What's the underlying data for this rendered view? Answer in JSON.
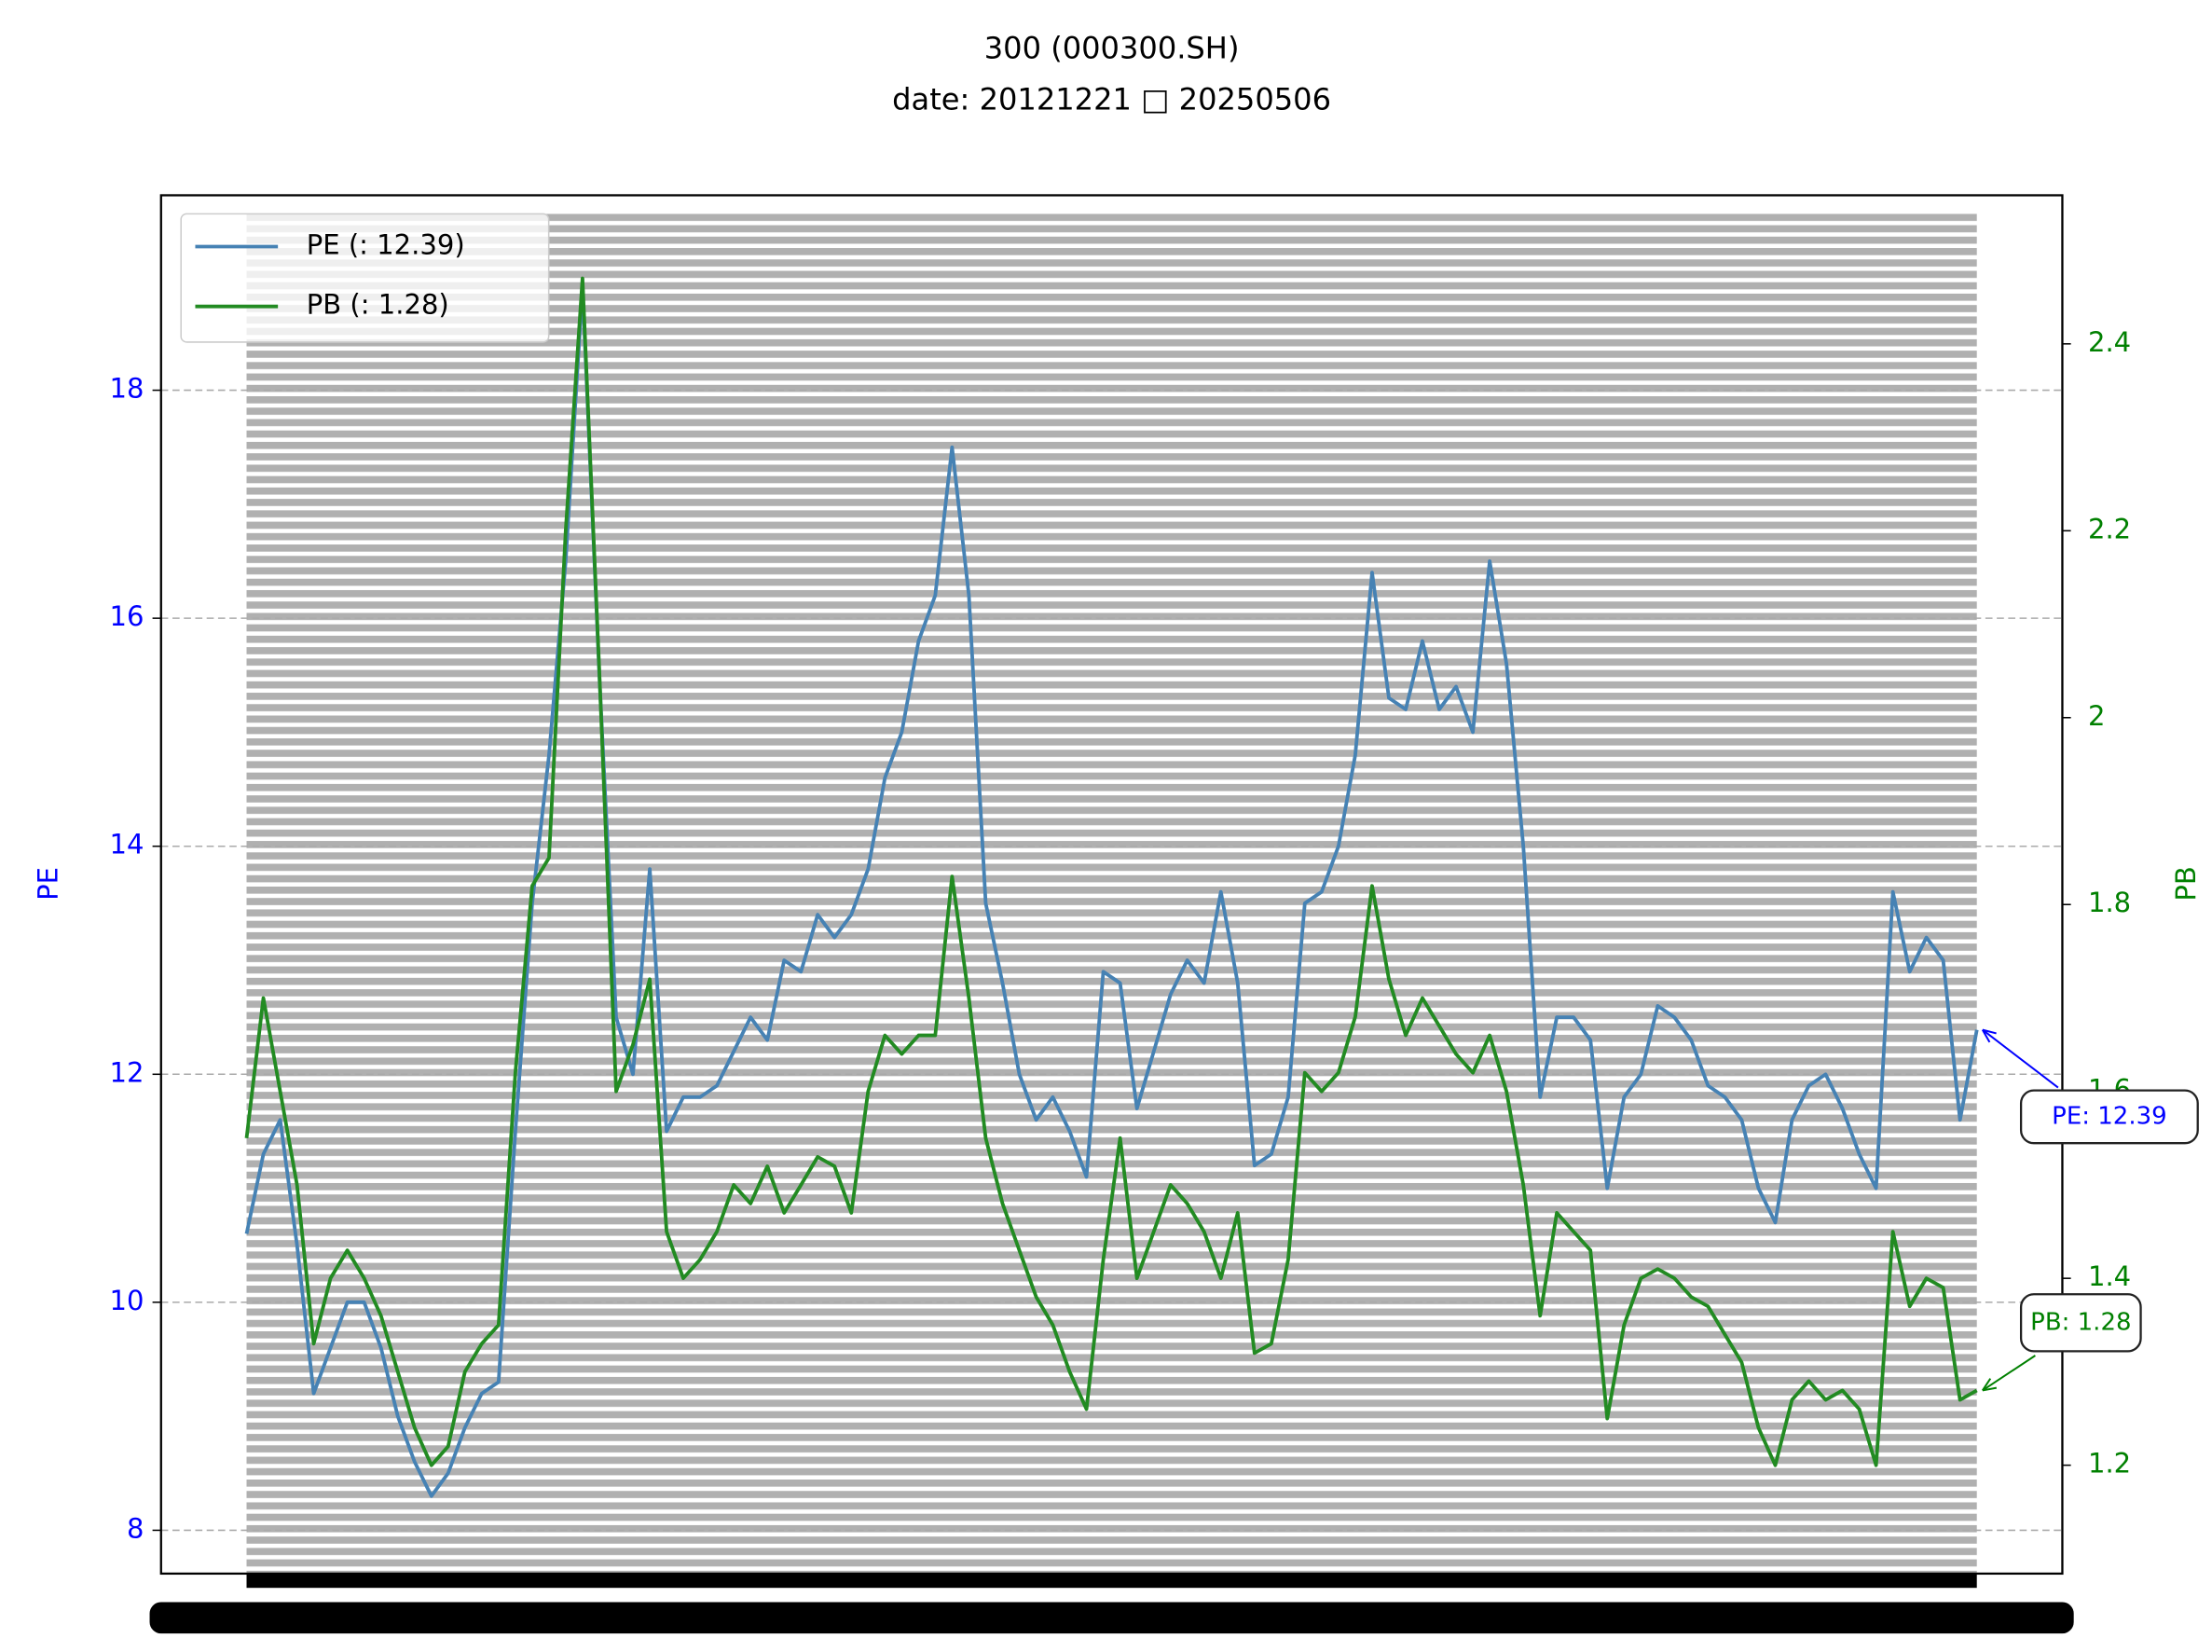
{
  "chart_data": {
    "type": "line",
    "title": "300 (000300.SH)",
    "subtitle": "date: 20121221 □ 20250506",
    "ylabel": "PE",
    "y2label": "PB",
    "ylim": [
      7.62,
      19.71
    ],
    "yticks": [
      8,
      10,
      12,
      14,
      16,
      18
    ],
    "y2lim": [
      1.084,
      2.559
    ],
    "y2ticks": [
      1.2,
      1.4,
      1.6,
      1.8,
      2.0,
      2.2,
      2.4
    ],
    "grid": true,
    "legend": "upper left",
    "series": [
      {
        "name": "PE (: 12.39)",
        "color": "#4682b4",
        "axis": "y",
        "values": [
          10.6,
          11.3,
          11.6,
          10.5,
          9.2,
          9.6,
          10.0,
          10.0,
          9.6,
          9.0,
          8.6,
          8.3,
          8.5,
          8.9,
          9.2,
          9.3,
          11.5,
          13.5,
          14.8,
          16.5,
          18.9,
          15.5,
          12.5,
          12.0,
          13.8,
          11.5,
          11.8,
          11.8,
          11.9,
          12.2,
          12.5,
          12.3,
          13.0,
          12.9,
          13.4,
          13.2,
          13.4,
          13.8,
          14.6,
          15.0,
          15.8,
          16.2,
          17.5,
          16.2,
          13.5,
          12.8,
          12.0,
          11.6,
          11.8,
          11.5,
          11.1,
          12.9,
          12.8,
          11.7,
          12.2,
          12.7,
          13.0,
          12.8,
          13.6,
          12.8,
          11.2,
          11.3,
          11.8,
          13.5,
          13.6,
          14.0,
          14.8,
          16.4,
          15.3,
          15.2,
          15.8,
          15.2,
          15.4,
          15.0,
          16.5,
          15.6,
          14.0,
          11.8,
          12.5,
          12.5,
          12.3,
          11.0,
          11.8,
          12.0,
          12.6,
          12.5,
          12.3,
          11.9,
          11.8,
          11.6,
          11.0,
          10.7,
          11.6,
          11.9,
          12.0,
          11.7,
          11.3,
          11.0,
          13.6,
          12.9,
          13.2,
          13.0,
          11.6,
          12.39
        ]
      },
      {
        "name": "PB (: 1.28)",
        "color": "#228b22",
        "axis": "y2",
        "values": [
          1.55,
          1.7,
          1.6,
          1.5,
          1.33,
          1.4,
          1.43,
          1.4,
          1.36,
          1.3,
          1.24,
          1.2,
          1.22,
          1.3,
          1.33,
          1.35,
          1.62,
          1.82,
          1.85,
          2.2,
          2.47,
          2.05,
          1.6,
          1.65,
          1.72,
          1.45,
          1.4,
          1.42,
          1.45,
          1.5,
          1.48,
          1.52,
          1.47,
          1.5,
          1.53,
          1.52,
          1.47,
          1.6,
          1.66,
          1.64,
          1.66,
          1.66,
          1.83,
          1.7,
          1.55,
          1.48,
          1.43,
          1.38,
          1.35,
          1.3,
          1.26,
          1.42,
          1.55,
          1.4,
          1.45,
          1.5,
          1.48,
          1.45,
          1.4,
          1.47,
          1.32,
          1.33,
          1.42,
          1.62,
          1.6,
          1.62,
          1.68,
          1.82,
          1.72,
          1.66,
          1.7,
          1.67,
          1.64,
          1.62,
          1.66,
          1.6,
          1.5,
          1.36,
          1.47,
          1.45,
          1.43,
          1.25,
          1.35,
          1.4,
          1.41,
          1.4,
          1.38,
          1.37,
          1.34,
          1.31,
          1.24,
          1.2,
          1.27,
          1.29,
          1.27,
          1.28,
          1.26,
          1.2,
          1.45,
          1.37,
          1.4,
          1.39,
          1.27,
          1.28
        ]
      }
    ],
    "annotations": [
      {
        "text": "PE: 12.39",
        "color": "#0000ff"
      },
      {
        "text": "PB: 1.28",
        "color": "#008000"
      }
    ]
  }
}
